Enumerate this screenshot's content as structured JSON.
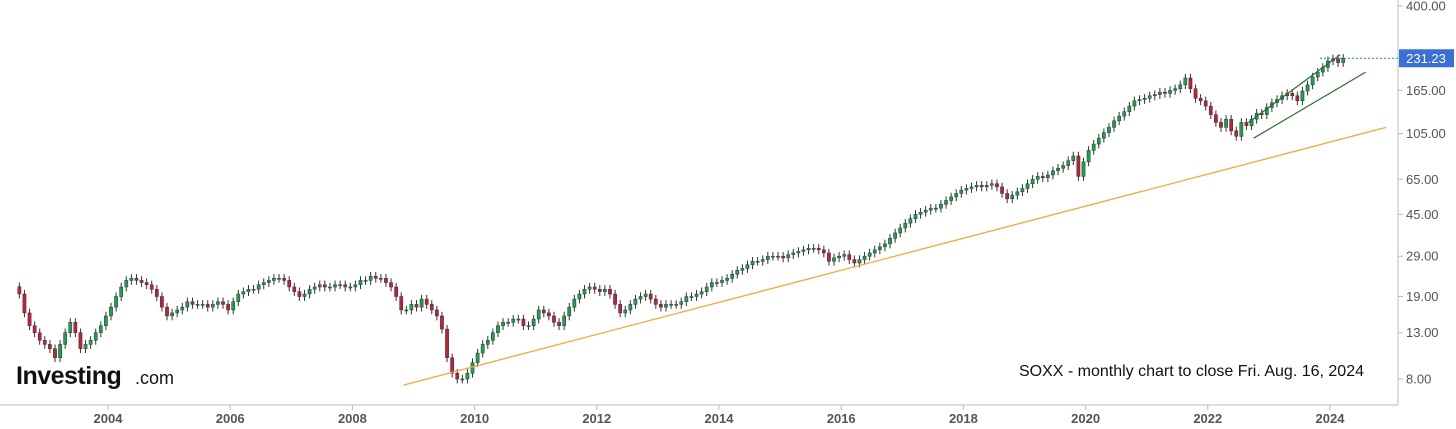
{
  "chart_data": {
    "type": "candlestick",
    "title": "SOXX - monthly chart to close Fri. Aug. 16, 2024",
    "ticker": "SOXX",
    "y_scale": "log",
    "ylim": [
      7.0,
      400.0
    ],
    "y_ticks": [
      400,
      231.23,
      165,
      105,
      65,
      45,
      29,
      19,
      13,
      8
    ],
    "y_tick_labels": [
      "400.00",
      "231.23",
      "165.00",
      "105.00",
      "65.00",
      "45.00",
      "29.00",
      "19.00",
      "13.00",
      "8.00"
    ],
    "x_ticks": [
      2004,
      2006,
      2008,
      2010,
      2012,
      2014,
      2016,
      2018,
      2020,
      2022,
      2024
    ],
    "x_tick_labels": [
      "2004",
      "2006",
      "2008",
      "2010",
      "2012",
      "2014",
      "2016",
      "2018",
      "2020",
      "2022",
      "2024"
    ],
    "last_price": 231.23,
    "last_price_label": "231.23",
    "close_series": {
      "start": "2002-07",
      "values": [
        19.5,
        16,
        14,
        13,
        12,
        11.5,
        11,
        10,
        11.5,
        13,
        14.5,
        13,
        11,
        11.5,
        12,
        13,
        14,
        15.5,
        17,
        19,
        21,
        22.5,
        23,
        22.5,
        22,
        21.5,
        20.5,
        19,
        17,
        15.5,
        16,
        16.5,
        17,
        18,
        17.5,
        17.5,
        17.5,
        17,
        17.5,
        18,
        17.5,
        16.5,
        18,
        19.5,
        20,
        20.5,
        20.5,
        21.5,
        22,
        22.5,
        23,
        23,
        22.5,
        21,
        20,
        19,
        19.5,
        20.5,
        21,
        21.5,
        21,
        21,
        21.5,
        21.5,
        21,
        21,
        21.5,
        22.5,
        22.5,
        23.5,
        23,
        23,
        22,
        21,
        19,
        16.5,
        16.5,
        17.5,
        17,
        18.5,
        17.5,
        16.5,
        15.5,
        13.5,
        10,
        8.5,
        8,
        8,
        8.5,
        9.5,
        10.5,
        11.5,
        12,
        13,
        14,
        14.5,
        14.5,
        15,
        15,
        14,
        14,
        15,
        16.5,
        16,
        15.5,
        14.5,
        14,
        15.5,
        17,
        18.5,
        19.5,
        20.5,
        21,
        20.5,
        20,
        20.5,
        19.5,
        17.5,
        16,
        16.5,
        17.5,
        18.5,
        19,
        19.5,
        18.5,
        17.5,
        17,
        17.5,
        17.5,
        17.5,
        18,
        19,
        19,
        19.5,
        20,
        21,
        22,
        22,
        22.5,
        23,
        24,
        25,
        25.5,
        26.5,
        27.5,
        27.5,
        28,
        29,
        29,
        29,
        28.5,
        29.5,
        30,
        30.5,
        31,
        31.5,
        31.5,
        31,
        30,
        27.5,
        28.5,
        29,
        29.5,
        28,
        27,
        28,
        29,
        30,
        31,
        32,
        33,
        35,
        37,
        39,
        41,
        43,
        45,
        46,
        47,
        48,
        48,
        50,
        52,
        54,
        56,
        58,
        59,
        60,
        61,
        60,
        61,
        62,
        60,
        56,
        53,
        55,
        57,
        59,
        62,
        65,
        67,
        66,
        68,
        71,
        73,
        75,
        79,
        83,
        67,
        78,
        88,
        94,
        100,
        106,
        112,
        120,
        126,
        132,
        140,
        148,
        150,
        152,
        156,
        158,
        162,
        160,
        165,
        168,
        175,
        188,
        168,
        152,
        148,
        140,
        128,
        118,
        112,
        122,
        108,
        102,
        118,
        114,
        122,
        130,
        128,
        138,
        145,
        150,
        156,
        160,
        156,
        148,
        164,
        175,
        190,
        200,
        210,
        225,
        230,
        221,
        231.23
      ]
    },
    "trendlines": [
      {
        "from": [
          "2008-11",
          7.5
        ],
        "to": [
          "2024-12",
          112
        ]
      },
      {
        "from": [
          "2022-09",
          118
        ],
        "to": [
          "2024-03",
          240
        ]
      },
      {
        "from": [
          "2022-10",
          100
        ],
        "to": [
          "2024-08",
          200
        ]
      }
    ]
  },
  "branding": {
    "logo_main": "Investing",
    "logo_suffix": ".com"
  },
  "colors": {
    "up_fill": "#16a34a",
    "down_fill": "#c41e3a",
    "wick": "#333333",
    "support_line": "#f0a842",
    "channel_line": "#2b6b2b",
    "price_badge": "#3a6fd8",
    "axis_text": "#555555",
    "axis_line": "#bbbbbb",
    "annotation": "#111111"
  }
}
